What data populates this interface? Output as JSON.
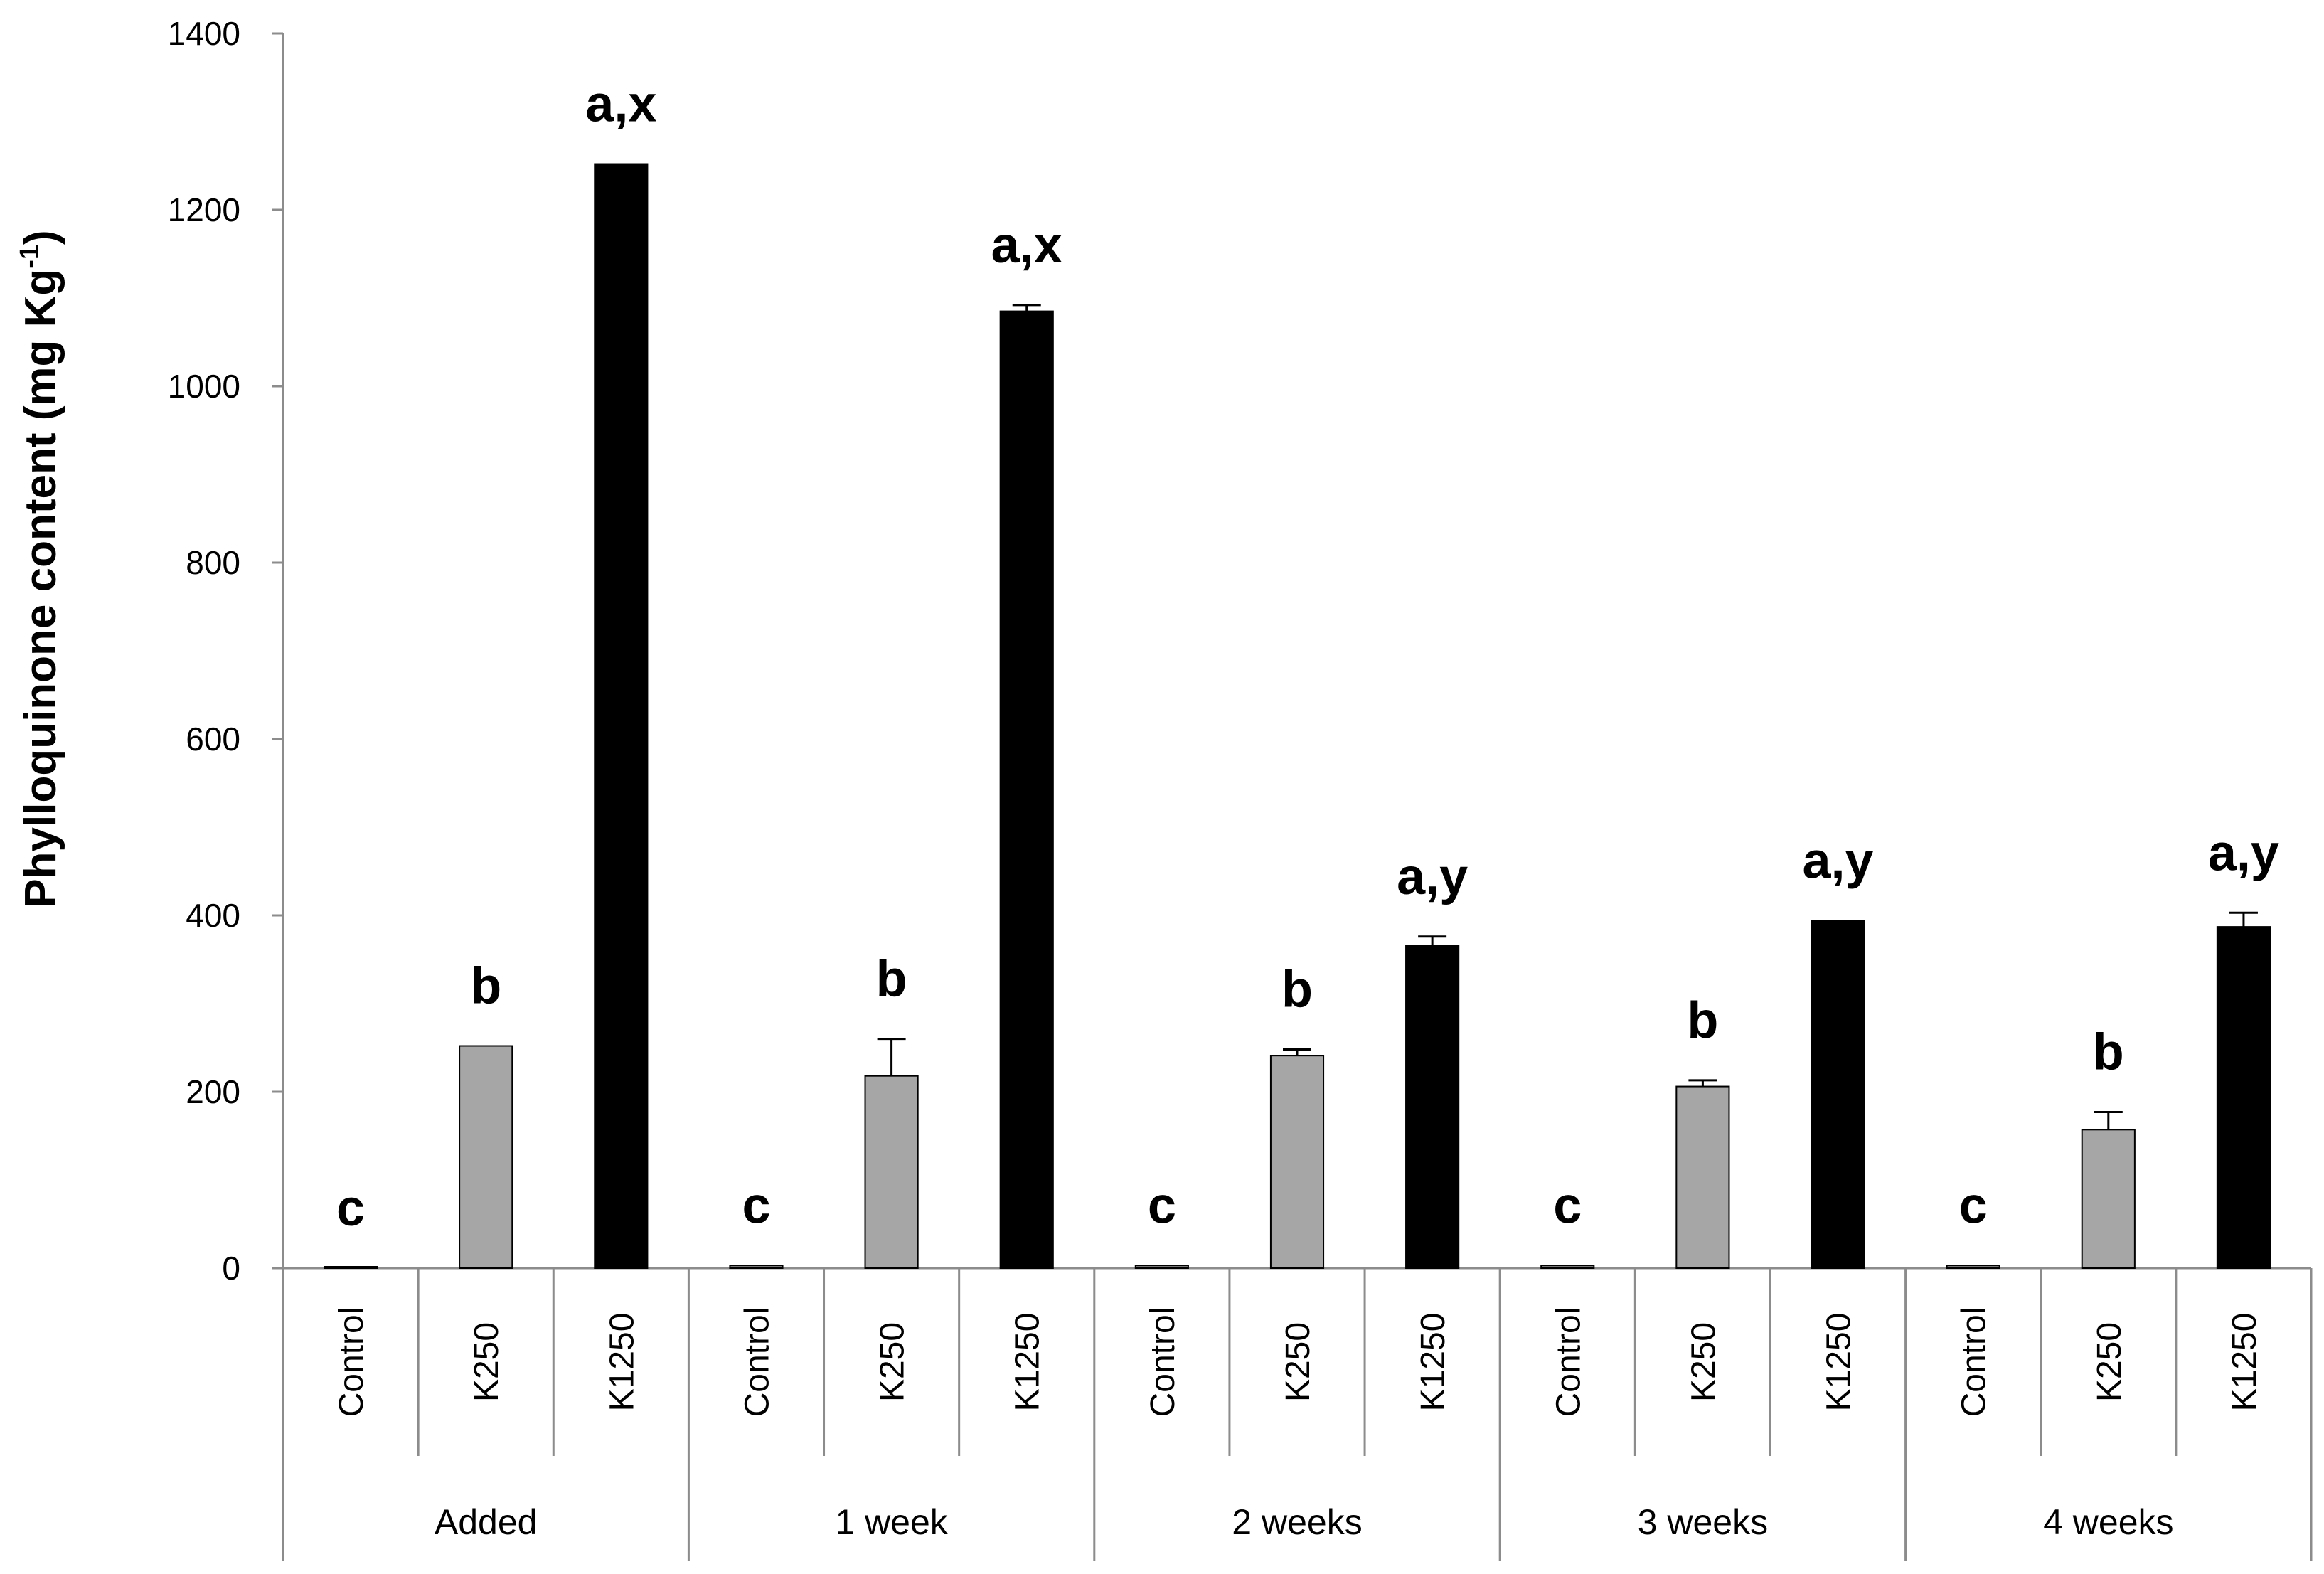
{
  "chart_data": {
    "type": "bar",
    "ylabel_main": "Phylloquinone content (mg Kg",
    "ylabel_sup": "-1",
    "ylabel_close": ")",
    "xlabel": "",
    "ylim": [
      0,
      1400
    ],
    "yticks": [
      "0",
      "200",
      "400",
      "600",
      "800",
      "1000",
      "1200",
      "1400"
    ],
    "tick_values": [
      0,
      200,
      400,
      600,
      800,
      1000,
      1200,
      1400
    ],
    "grid": false,
    "legend": "none",
    "groups": [
      {
        "label": "Added",
        "bars": [
          {
            "category": "Control",
            "value": 0,
            "error": 0,
            "letter": "c"
          },
          {
            "category": "K250",
            "value": 252,
            "error": 0,
            "letter": "b"
          },
          {
            "category": "K1250",
            "value": 1252,
            "error": 0,
            "letter": "a,x"
          }
        ]
      },
      {
        "label": "1 week",
        "bars": [
          {
            "category": "Control",
            "value": 3,
            "error": 0,
            "letter": "c"
          },
          {
            "category": "K250",
            "value": 218,
            "error": 42,
            "letter": "b"
          },
          {
            "category": "K1250",
            "value": 1085,
            "error": 7,
            "letter": "a,x"
          }
        ]
      },
      {
        "label": "2 weeks",
        "bars": [
          {
            "category": "Control",
            "value": 3,
            "error": 0,
            "letter": "c"
          },
          {
            "category": "K250",
            "value": 241,
            "error": 7,
            "letter": "b"
          },
          {
            "category": "K1250",
            "value": 366,
            "error": 10,
            "letter": "a,y"
          }
        ]
      },
      {
        "label": "3 weeks",
        "bars": [
          {
            "category": "Control",
            "value": 3,
            "error": 0,
            "letter": "c"
          },
          {
            "category": "K250",
            "value": 206,
            "error": 7,
            "letter": "b"
          },
          {
            "category": "K1250",
            "value": 394,
            "error": 0,
            "letter": "a,y"
          }
        ]
      },
      {
        "label": "4 weeks",
        "bars": [
          {
            "category": "Control",
            "value": 3,
            "error": 0,
            "letter": "c"
          },
          {
            "category": "K250",
            "value": 157,
            "error": 20,
            "letter": "b"
          },
          {
            "category": "K1250",
            "value": 387,
            "error": 16,
            "letter": "a,y"
          }
        ]
      }
    ],
    "colors": {
      "Control": "#a6a6a6",
      "K250": "#a6a6a6",
      "K1250": "#000000",
      "axis": "#8c8c8c"
    }
  }
}
